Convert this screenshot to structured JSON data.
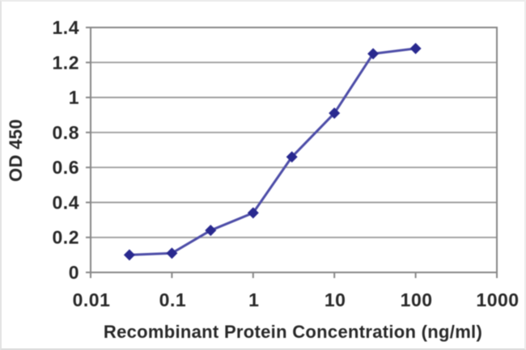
{
  "chart_data": {
    "type": "line",
    "title": "",
    "xlabel": "Recombinant Protein Concentration (ng/ml)",
    "ylabel": "OD 450",
    "x_scale": "log10",
    "xlim": [
      0.01,
      1000
    ],
    "ylim": [
      0,
      1.4
    ],
    "x_ticks": [
      0.01,
      0.1,
      1,
      10,
      100,
      1000
    ],
    "x_tick_labels": [
      "0.01",
      "0.1",
      "1",
      "10",
      "100",
      "1000"
    ],
    "y_ticks": [
      0,
      0.2,
      0.4,
      0.6,
      0.8,
      1,
      1.2,
      1.4
    ],
    "y_tick_labels": [
      "0",
      "0.2",
      "0.4",
      "0.6",
      "0.8",
      "1",
      "1.2",
      "1.4"
    ],
    "grid": "horizontal",
    "legend": "none",
    "series": [
      {
        "name": "OD 450",
        "marker": "diamond",
        "x": [
          0.03,
          0.1,
          0.3,
          1,
          3,
          10,
          30,
          100
        ],
        "y": [
          0.1,
          0.11,
          0.24,
          0.34,
          0.66,
          0.91,
          1.25,
          1.28
        ]
      }
    ]
  },
  "style": {
    "line_color": "#4d4da8",
    "marker_color": "#29298f",
    "grid_color": "#9a9a9a",
    "axis_color": "#878787",
    "text_color": "#282828",
    "plot_background": "#ffffff",
    "page_background": "#ffffff"
  }
}
